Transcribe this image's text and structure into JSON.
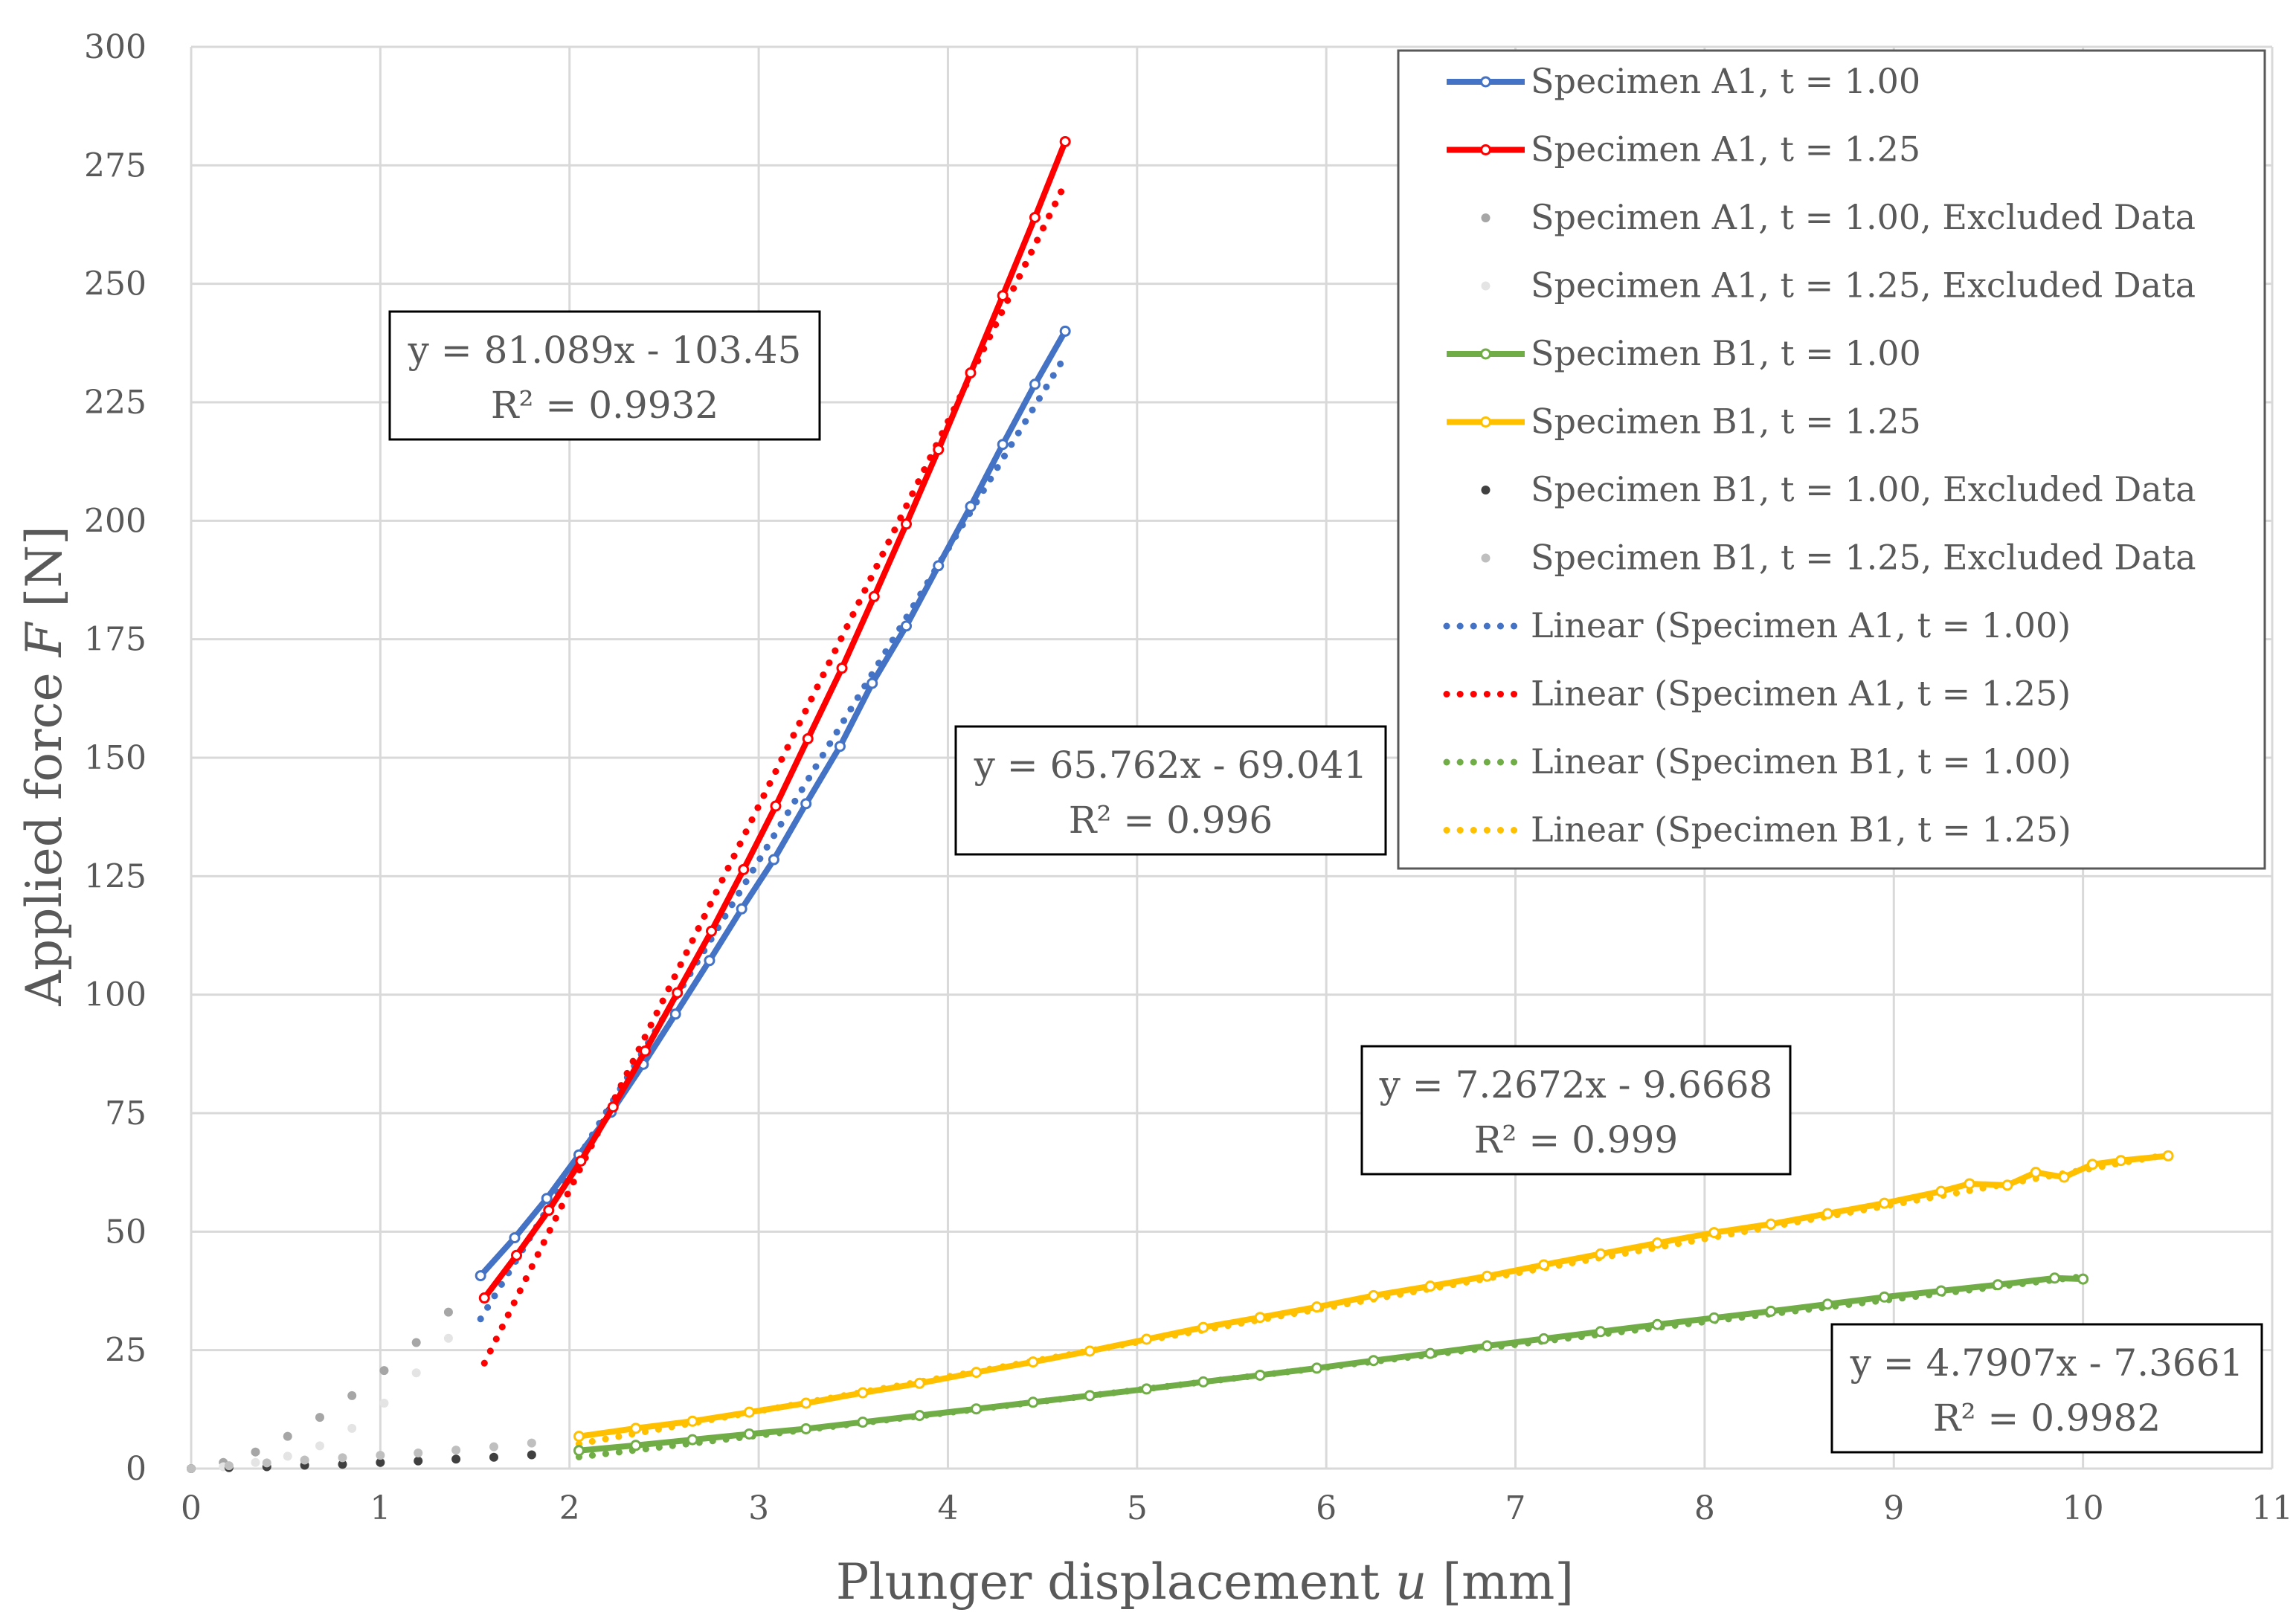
{
  "chart_data": {
    "type": "scatter",
    "title": "",
    "xlabel": "Plunger displacement u [mm]",
    "xlabel_parts": {
      "prefix": "Plunger displacement ",
      "var": "u",
      "suffix": " [mm]"
    },
    "ylabel": "Applied force F [N]",
    "ylabel_parts": {
      "prefix": "Applied force ",
      "var": "F",
      "suffix": " [N]"
    },
    "xlim": [
      0,
      11
    ],
    "ylim": [
      0,
      300
    ],
    "xticks": [
      0,
      1,
      2,
      3,
      4,
      5,
      6,
      7,
      8,
      9,
      10,
      11
    ],
    "yticks": [
      0,
      25,
      50,
      75,
      100,
      125,
      150,
      175,
      200,
      225,
      250,
      275,
      300
    ],
    "grid": true,
    "legend_position": "top-right",
    "series": [
      {
        "name": "Specimen A1, t = 1.00",
        "color": "#4472C4",
        "style": "line-markers",
        "x": [
          1.53,
          1.71,
          1.88,
          2.05,
          2.22,
          2.39,
          2.56,
          2.74,
          2.91,
          3.08,
          3.25,
          3.43,
          3.6,
          3.78,
          3.95,
          4.12,
          4.29,
          4.46,
          4.62
        ],
        "y": [
          40.7,
          48.7,
          57.0,
          66.2,
          75.2,
          85.3,
          95.9,
          107.2,
          118.1,
          128.5,
          140.3,
          152.4,
          165.7,
          177.8,
          190.5,
          203.0,
          216.1,
          228.8,
          240.0
        ]
      },
      {
        "name": "Specimen A1, t = 1.25",
        "color": "#FF0000",
        "style": "line-markers",
        "x": [
          1.55,
          1.72,
          1.89,
          2.06,
          2.23,
          2.4,
          2.57,
          2.75,
          2.92,
          3.09,
          3.26,
          3.44,
          3.61,
          3.78,
          3.95,
          4.12,
          4.29,
          4.46,
          4.62
        ],
        "y": [
          36.0,
          45.0,
          54.5,
          64.9,
          76.3,
          88.1,
          100.4,
          113.4,
          126.4,
          139.8,
          154.0,
          168.9,
          184.0,
          199.3,
          215.0,
          231.2,
          247.5,
          264.0,
          280.0
        ]
      },
      {
        "name": "Specimen A1, t = 1.00, Excluded Data",
        "color": "#A6A6A6",
        "style": "markers",
        "x": [
          0.0,
          0.17,
          0.34,
          0.51,
          0.68,
          0.85,
          1.02,
          1.19,
          1.36
        ],
        "y": [
          0.0,
          1.3,
          3.5,
          6.8,
          10.8,
          15.4,
          20.7,
          26.6,
          33.0
        ]
      },
      {
        "name": "Specimen A1, t = 1.25, Excluded Data",
        "color": "#E4E4E4",
        "style": "markers",
        "x": [
          0.0,
          0.17,
          0.34,
          0.51,
          0.68,
          0.85,
          1.02,
          1.19,
          1.36
        ],
        "y": [
          0.0,
          0.4,
          1.3,
          2.6,
          4.8,
          8.5,
          13.8,
          20.2,
          27.5
        ]
      },
      {
        "name": "Specimen B1, t = 1.00",
        "color": "#70AD47",
        "style": "line-markers",
        "x": [
          2.05,
          2.35,
          2.65,
          2.95,
          3.25,
          3.55,
          3.85,
          4.15,
          4.45,
          4.75,
          5.05,
          5.35,
          5.65,
          5.95,
          6.25,
          6.55,
          6.85,
          7.15,
          7.45,
          7.75,
          8.05,
          8.35,
          8.65,
          8.95,
          9.25,
          9.55,
          9.85,
          10.0
        ],
        "y": [
          3.8,
          4.9,
          6.1,
          7.3,
          8.4,
          9.8,
          11.2,
          12.6,
          14.0,
          15.4,
          16.8,
          18.3,
          19.7,
          21.2,
          22.8,
          24.3,
          25.9,
          27.4,
          28.9,
          30.4,
          31.8,
          33.2,
          34.7,
          36.2,
          37.5,
          38.8,
          40.2,
          40.0
        ]
      },
      {
        "name": "Specimen B1, t = 1.25",
        "color": "#FFC000",
        "style": "line-markers",
        "x": [
          2.05,
          2.35,
          2.65,
          2.95,
          3.25,
          3.55,
          3.85,
          4.15,
          4.45,
          4.75,
          5.05,
          5.35,
          5.65,
          5.95,
          6.25,
          6.55,
          6.85,
          7.15,
          7.45,
          7.75,
          8.05,
          8.35,
          8.65,
          8.95,
          9.25,
          9.4,
          9.6,
          9.75,
          9.9,
          10.05,
          10.2,
          10.45
        ],
        "y": [
          6.8,
          8.5,
          10.0,
          11.9,
          13.8,
          16.0,
          18.0,
          20.3,
          22.5,
          24.8,
          27.3,
          29.8,
          31.9,
          34.1,
          36.5,
          38.5,
          40.6,
          43.0,
          45.3,
          47.6,
          49.8,
          51.6,
          53.8,
          56.0,
          58.5,
          60.1,
          59.8,
          62.5,
          61.5,
          64.2,
          65.0,
          66.0
        ]
      },
      {
        "name": "Specimen B1, t = 1.00, Excluded Data",
        "color": "#404040",
        "style": "markers",
        "x": [
          0.0,
          0.2,
          0.4,
          0.6,
          0.8,
          1.0,
          1.2,
          1.4,
          1.6,
          1.8
        ],
        "y": [
          0.0,
          0.2,
          0.4,
          0.7,
          0.9,
          1.3,
          1.6,
          2.0,
          2.4,
          2.9
        ]
      },
      {
        "name": "Specimen B1, t = 1.25, Excluded Data",
        "color": "#BFBFBF",
        "style": "markers",
        "x": [
          0.0,
          0.2,
          0.4,
          0.6,
          0.8,
          1.0,
          1.2,
          1.4,
          1.6,
          1.8
        ],
        "y": [
          0.0,
          0.6,
          1.2,
          1.8,
          2.3,
          2.8,
          3.3,
          3.9,
          4.6,
          5.4
        ]
      },
      {
        "name": "Linear (Specimen A1, t = 1.00)",
        "color": "#4472C4",
        "style": "dotted-trend",
        "slope": 65.762,
        "intercept": -69.041,
        "x_range": [
          1.53,
          4.62
        ]
      },
      {
        "name": "Linear (Specimen A1, t = 1.25)",
        "color": "#FF0000",
        "style": "dotted-trend",
        "slope": 81.089,
        "intercept": -103.45,
        "x_range": [
          1.55,
          4.62
        ]
      },
      {
        "name": "Linear (Specimen B1, t = 1.00)",
        "color": "#70AD47",
        "style": "dotted-trend",
        "slope": 4.7907,
        "intercept": -7.3661,
        "x_range": [
          2.05,
          10.0
        ]
      },
      {
        "name": "Linear (Specimen B1, t = 1.25)",
        "color": "#FFC000",
        "style": "dotted-trend",
        "slope": 7.2672,
        "intercept": -9.6668,
        "x_range": [
          2.05,
          10.45
        ]
      }
    ],
    "annotations": [
      {
        "line1": "y = 81.089x - 103.45",
        "line2": "R² = 0.9932"
      },
      {
        "line1": "y = 65.762x - 69.041",
        "line2": "R² = 0.996"
      },
      {
        "line1": "y = 7.2672x - 9.6668",
        "line2": "R² = 0.999"
      },
      {
        "line1": "y = 4.7907x - 7.3661",
        "line2": "R² = 0.9982"
      }
    ]
  }
}
